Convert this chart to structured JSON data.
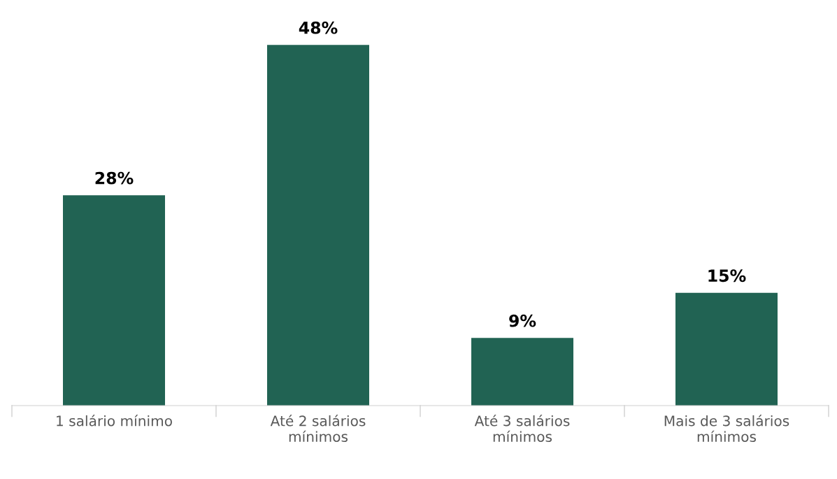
{
  "chart_data": {
    "type": "bar",
    "categories": [
      "1 salário mínimo",
      "Até 2 salários\nmínimos",
      "Até 3 salários\nmínimos",
      "Mais de 3 salários\nmínimos"
    ],
    "values": [
      28,
      48,
      9,
      15
    ],
    "value_labels": [
      "28%",
      "48%",
      "9%",
      "15%"
    ],
    "color": "#216353",
    "grid": false,
    "legend": false
  }
}
